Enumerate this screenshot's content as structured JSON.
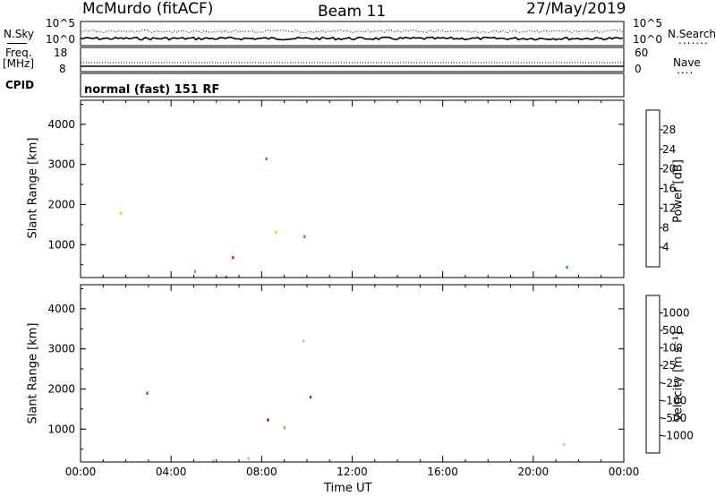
{
  "header": {
    "station": "McMurdo (fitACF)",
    "beam": "Beam 11",
    "date": "27/May/2019"
  },
  "panels": {
    "sky": {
      "left_label": "N.Sky",
      "right_label": "N.Search",
      "left_ticks": [
        "10^5",
        "10^0"
      ],
      "right_ticks": [
        "10^5",
        "10^0"
      ],
      "right_legend_dots": "......."
    },
    "freq": {
      "left_label": "Freq.",
      "left_unit": "[MHz]",
      "right_label": "Nave",
      "left_ticks": [
        "18",
        "8"
      ],
      "right_ticks": [
        "60",
        "0"
      ],
      "right_legend_dots": "...."
    },
    "cpid": {
      "label": "CPID",
      "text": "normal (fast) 151 RF"
    }
  },
  "colors": {
    "power": [
      "#0000ff",
      "#3050b0",
      "#2e8b57",
      "#50b848",
      "#aacc00",
      "#ffcc00",
      "#ff8c00",
      "#ff4400",
      "#ee0000"
    ],
    "velocity": [
      "#ee0000",
      "#ff4400",
      "#ff8c00",
      "#ffcc00",
      "#bbbbbb",
      "#66cc33",
      "#2e8b57",
      "#3050b0",
      "#1a1ae6"
    ]
  },
  "chart_data": [
    {
      "type": "heatmap",
      "ylabel": "Slant Range [km]",
      "yticks": [
        "4000",
        "3000",
        "2000",
        "1000"
      ],
      "ylim": [
        180,
        4600
      ],
      "xlim": [
        0,
        24
      ],
      "colorbar_label": "Power [dB]",
      "colorbar_ticks": [
        "28",
        "24",
        "20",
        "16",
        "12",
        "8",
        "4"
      ],
      "colorbar_range": [
        0,
        32
      ]
    },
    {
      "type": "heatmap",
      "ylabel": "Slant Range [km]",
      "yticks": [
        "4000",
        "3000",
        "2000",
        "1000"
      ],
      "ylim": [
        180,
        4600
      ],
      "xlim": [
        0,
        24
      ],
      "xlabel": "Time UT",
      "xticks": [
        "00:00",
        "04:00",
        "08:00",
        "12:00",
        "16:00",
        "20:00",
        "00:00"
      ],
      "colorbar_label": "Velocity [m s⁻¹]",
      "colorbar_ticks": [
        "1000",
        "500",
        "100",
        "25",
        "-25",
        "-100",
        "-500",
        "-1000"
      ]
    }
  ]
}
